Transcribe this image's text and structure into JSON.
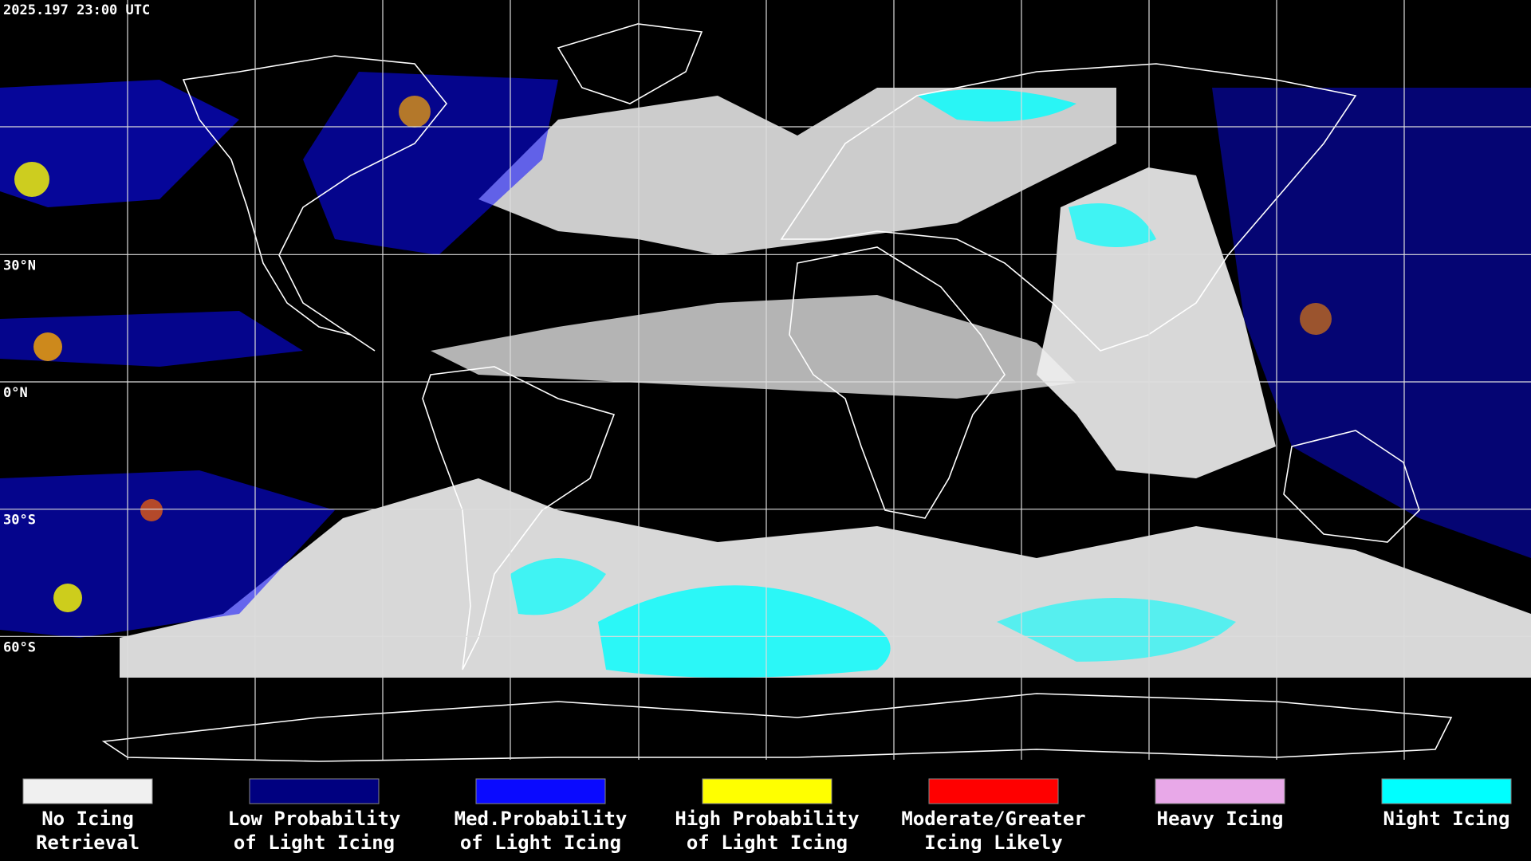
{
  "map": {
    "timestamp": "2025.197 23:00 UTC",
    "latitudes": [
      {
        "value": 30,
        "label": "30°N"
      },
      {
        "value": 0,
        "label": "0°N"
      },
      {
        "value": -30,
        "label": "30°S"
      },
      {
        "value": -60,
        "label": "60°S"
      }
    ],
    "legend": [
      {
        "lines": [
          "No Icing",
          "Retrieval"
        ],
        "color": "#f0f0f0"
      },
      {
        "lines": [
          "Low Probability",
          "of Light Icing"
        ],
        "color": "#000080"
      },
      {
        "lines": [
          "Med.Probability",
          "of Light Icing"
        ],
        "color": "#0a0aff"
      },
      {
        "lines": [
          "High Probability",
          "of Light Icing"
        ],
        "color": "#ffff00"
      },
      {
        "lines": [
          "Moderate/Greater",
          "Icing Likely"
        ],
        "color": "#ff0000"
      },
      {
        "lines": [
          "Heavy Icing"
        ],
        "color": "#e8a8e8"
      },
      {
        "lines": [
          "Night Icing"
        ],
        "color": "#00ffff"
      }
    ]
  }
}
